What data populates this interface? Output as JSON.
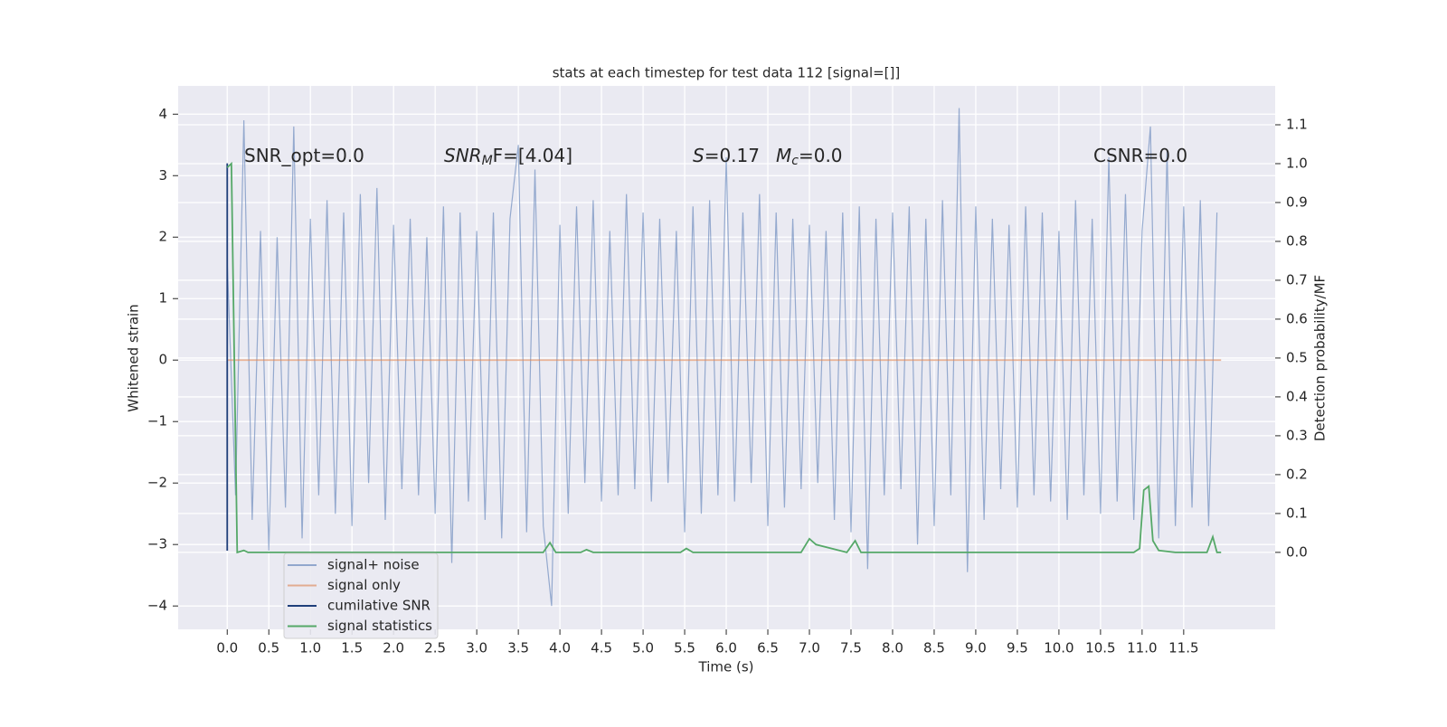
{
  "chart_data": {
    "type": "line",
    "title": "stats at each timestep for test data 112 [signal=[]]",
    "xlabel": "Time (s)",
    "ylabel": "Whitened strain",
    "y2label": "Detection probability/MF",
    "xlim": [
      -0.59,
      12.6
    ],
    "ylim": [
      -4.38,
      4.46
    ],
    "y2lim": [
      -0.198,
      1.2
    ],
    "grid": true,
    "legend": "lower left",
    "xticks": [
      {
        "value": 0,
        "label": "0.0"
      },
      0.5,
      {
        "value": 1,
        "label": "1.0"
      },
      1.5,
      {
        "value": 2,
        "label": "2.0"
      },
      2.5,
      {
        "value": 3,
        "label": "3.0"
      },
      3.5,
      {
        "value": 4,
        "label": "4.0"
      },
      4.5,
      {
        "value": 5,
        "label": "5.0"
      },
      5.5,
      {
        "value": 6,
        "label": "6.0"
      },
      6.5,
      {
        "value": 7,
        "label": "7.0"
      },
      7.5,
      {
        "value": 8,
        "label": "8.0"
      },
      8.5,
      {
        "value": 9,
        "label": "9.0"
      },
      9.5,
      {
        "value": 10,
        "label": "10.0"
      },
      10.5,
      {
        "value": 11,
        "label": "11.0"
      },
      11.5
    ],
    "yticks": [
      {
        "value": -4,
        "label": "−4"
      },
      {
        "value": -3,
        "label": "−3"
      },
      {
        "value": -2,
        "label": "−2"
      },
      {
        "value": -1,
        "label": "−1"
      },
      0,
      1,
      2,
      3,
      4
    ],
    "y2ticks": [
      {
        "value": 0,
        "label": "0.0"
      },
      0.1,
      0.2,
      0.3,
      0.4,
      0.5,
      0.6,
      0.7,
      0.8,
      0.9,
      {
        "value": 1,
        "label": "1.0"
      },
      1.1
    ],
    "annotations": [
      {
        "text": "SNR_opt=0.0"
      },
      {
        "italic": "SNR",
        "sub": "M",
        "text": "F=[4.04]"
      },
      {
        "italic": "S",
        "text": "=0.17"
      },
      {
        "italic": "M",
        "sub": "c",
        "text": "=0.0"
      },
      {
        "text": "CSNR=0.0"
      }
    ],
    "series": [
      {
        "name": "signal+ noise",
        "color": "#4c72b0",
        "axis": "y",
        "x": [
          0.0,
          0.1,
          0.2,
          0.3,
          0.4,
          0.5,
          0.6,
          0.7,
          0.8,
          0.9,
          1.0,
          1.1,
          1.2,
          1.3,
          1.4,
          1.5,
          1.6,
          1.7,
          1.8,
          1.9,
          2.0,
          2.1,
          2.2,
          2.3,
          2.4,
          2.5,
          2.6,
          2.7,
          2.8,
          2.9,
          3.0,
          3.1,
          3.2,
          3.3,
          3.4,
          3.5,
          3.6,
          3.7,
          3.8,
          3.9,
          4.0,
          4.1,
          4.2,
          4.3,
          4.4,
          4.5,
          4.6,
          4.7,
          4.8,
          4.9,
          5.0,
          5.1,
          5.2,
          5.3,
          5.4,
          5.5,
          5.6,
          5.7,
          5.8,
          5.9,
          6.0,
          6.1,
          6.2,
          6.3,
          6.4,
          6.5,
          6.6,
          6.7,
          6.8,
          6.9,
          7.0,
          7.1,
          7.2,
          7.3,
          7.4,
          7.5,
          7.6,
          7.7,
          7.8,
          7.9,
          8.0,
          8.1,
          8.2,
          8.3,
          8.4,
          8.5,
          8.6,
          8.7,
          8.8,
          8.9,
          9.0,
          9.1,
          9.2,
          9.3,
          9.4,
          9.5,
          9.6,
          9.7,
          9.8,
          9.9,
          10.0,
          10.1,
          10.2,
          10.3,
          10.4,
          10.5,
          10.6,
          10.7,
          10.8,
          10.9,
          11.0,
          11.1,
          11.2,
          11.3,
          11.4,
          11.5,
          11.6,
          11.7,
          11.8,
          11.9
        ],
        "values": [
          1.6,
          -2.2,
          3.9,
          -2.6,
          2.1,
          -3.1,
          2.0,
          -2.4,
          3.8,
          -2.9,
          2.3,
          -2.2,
          2.6,
          -2.5,
          2.4,
          -2.7,
          2.7,
          -2.0,
          2.8,
          -2.6,
          2.2,
          -2.1,
          2.3,
          -2.2,
          2.0,
          -2.5,
          2.5,
          -3.3,
          2.4,
          -2.3,
          2.1,
          -2.6,
          2.4,
          -2.9,
          2.3,
          3.5,
          -2.8,
          3.1,
          -2.7,
          -4.0,
          2.2,
          -2.5,
          2.5,
          -2.0,
          2.6,
          -2.3,
          2.1,
          -2.2,
          2.7,
          -2.1,
          2.4,
          -2.3,
          2.3,
          -2.0,
          2.1,
          -2.8,
          2.5,
          -2.5,
          2.6,
          -2.2,
          3.3,
          -2.3,
          2.4,
          -2.0,
          2.7,
          -2.7,
          2.4,
          -2.4,
          2.3,
          -2.1,
          2.2,
          -2.0,
          2.1,
          -2.6,
          2.4,
          -2.8,
          2.5,
          -3.4,
          2.3,
          -2.2,
          2.4,
          -2.1,
          2.5,
          -3.0,
          2.3,
          -2.7,
          2.6,
          -2.2,
          4.1,
          -3.45,
          2.5,
          -2.6,
          2.3,
          -2.1,
          2.2,
          -2.4,
          2.5,
          -2.2,
          2.4,
          -2.3,
          2.1,
          -2.6,
          2.6,
          -2.2,
          2.3,
          -2.5,
          3.3,
          -2.3,
          2.7,
          -2.6,
          2.1,
          3.8,
          -2.9,
          3.4,
          -2.7,
          2.5,
          -2.4,
          2.6,
          -2.7,
          2.4
        ]
      },
      {
        "name": "signal only",
        "color": "#dd8452",
        "axis": "y",
        "x": [
          0.0,
          11.95
        ],
        "values": [
          0,
          0
        ]
      },
      {
        "name": "cumilative SNR",
        "color": "#1f3f7a",
        "axis": "y",
        "x": [
          0.0,
          0.0
        ],
        "values": [
          3.2,
          -3.1
        ]
      },
      {
        "name": "signal statistics",
        "color": "#55a868",
        "axis": "y2",
        "x": [
          0.0,
          0.05,
          0.12,
          0.2,
          0.25,
          0.4,
          3.8,
          3.88,
          3.95,
          4.25,
          4.32,
          4.4,
          5.45,
          5.52,
          5.6,
          6.9,
          7.0,
          7.08,
          7.45,
          7.55,
          7.62,
          10.9,
          10.97,
          11.02,
          11.08,
          11.13,
          11.2,
          11.4,
          11.78,
          11.85,
          11.9,
          11.95
        ],
        "values": [
          0.99,
          1.0,
          0.0,
          0.005,
          0.0,
          0.0,
          0.0,
          0.025,
          0.0,
          0.0,
          0.007,
          0.0,
          0.0,
          0.01,
          0.0,
          0.0,
          0.035,
          0.02,
          0.0,
          0.03,
          0.0,
          0.0,
          0.01,
          0.16,
          0.17,
          0.03,
          0.005,
          0.0,
          0.0,
          0.04,
          0.0,
          0.0
        ]
      }
    ]
  }
}
